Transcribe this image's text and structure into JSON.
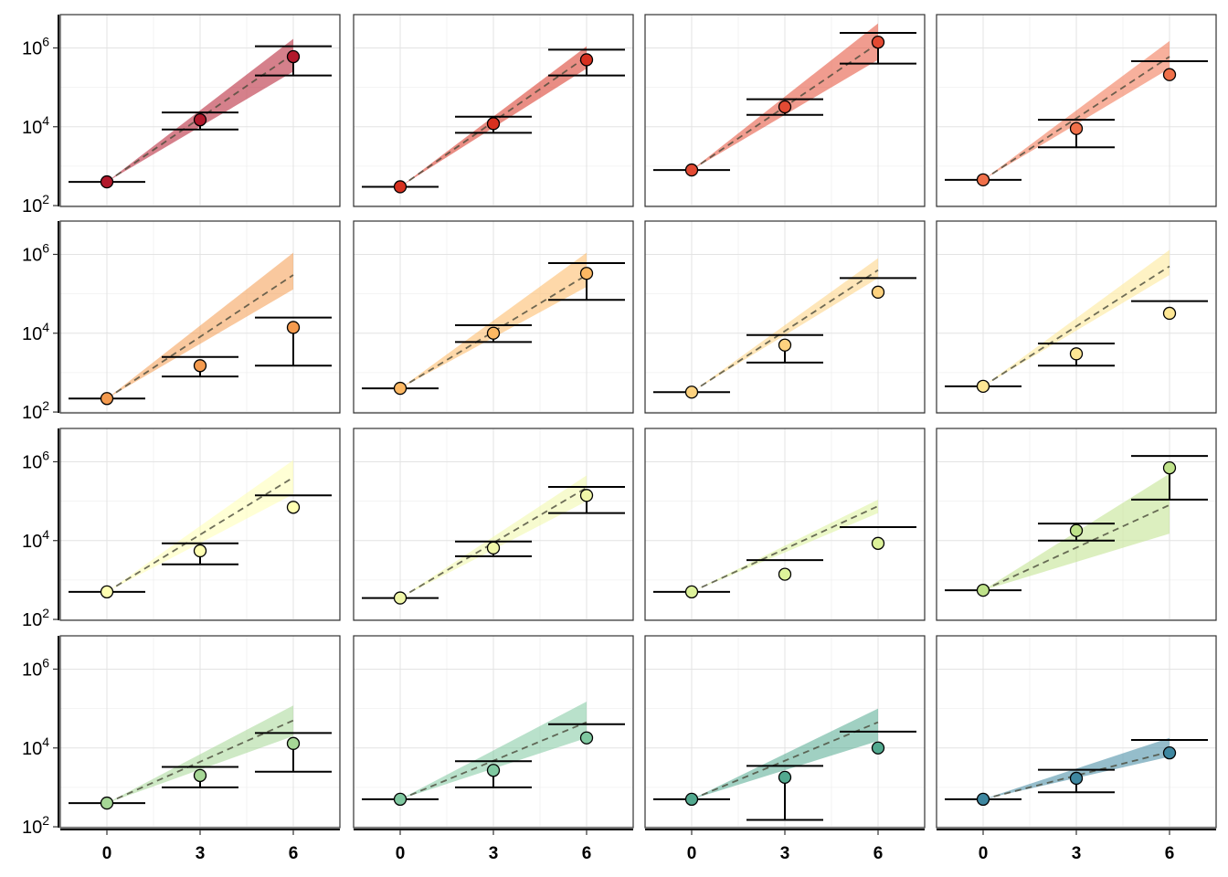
{
  "chart_data": {
    "type": "scatter",
    "layout": {
      "rows": 4,
      "cols": 4
    },
    "x_ticks": [
      "0",
      "3",
      "6"
    ],
    "y_ticks": [
      {
        "value": 100,
        "base": "10",
        "exp": "2"
      },
      {
        "value": 10000,
        "base": "10",
        "exp": "4"
      },
      {
        "value": 1000000,
        "base": "10",
        "exp": "6"
      }
    ],
    "x_range": [
      -1.5,
      7.5
    ],
    "y_range": [
      95,
      7000000
    ],
    "y_scale": "log",
    "grid": true,
    "colors": [
      "#B2182B",
      "#D7301F",
      "#E34A33",
      "#F0704A",
      "#F49A4E",
      "#FDB863",
      "#FDD27F",
      "#FEE794",
      "#FFFFB2",
      "#F0F7A8",
      "#DDF29A",
      "#BFE28A",
      "#A6D796",
      "#7FC8A0",
      "#52A98F",
      "#3E87A0"
    ],
    "panels": [
      {
        "points": [
          [
            0,
            400
          ],
          [
            3,
            15000
          ],
          [
            6,
            600000
          ]
        ],
        "intervals": [
          [
            0,
            400,
            400
          ],
          [
            3,
            8500,
            23000
          ],
          [
            6,
            200000,
            1100000
          ]
        ],
        "trend_end": 700000,
        "band_end": [
          250000,
          1700000
        ]
      },
      {
        "points": [
          [
            0,
            300
          ],
          [
            3,
            12000
          ],
          [
            6,
            500000
          ]
        ],
        "intervals": [
          [
            0,
            300,
            300
          ],
          [
            3,
            7000,
            18000
          ],
          [
            6,
            200000,
            900000
          ]
        ],
        "trend_end": 600000,
        "band_end": [
          300000,
          1100000
        ]
      },
      {
        "points": [
          [
            0,
            800
          ],
          [
            3,
            32000
          ],
          [
            6,
            1400000
          ]
        ],
        "intervals": [
          [
            0,
            800,
            800
          ],
          [
            3,
            20000,
            50000
          ],
          [
            6,
            400000,
            2400000
          ]
        ],
        "trend_end": 1300000,
        "band_end": [
          500000,
          4200000
        ]
      },
      {
        "points": [
          [
            0,
            450
          ],
          [
            3,
            9000
          ],
          [
            6,
            210000
          ]
        ],
        "intervals": [
          [
            0,
            450,
            450
          ],
          [
            3,
            3000,
            15000
          ],
          [
            6,
            460000,
            460000
          ]
        ],
        "trend_end": 600000,
        "band_end": [
          300000,
          1500000
        ]
      },
      {
        "points": [
          [
            0,
            220
          ],
          [
            3,
            1500
          ],
          [
            6,
            14000
          ]
        ],
        "intervals": [
          [
            0,
            220,
            220
          ],
          [
            3,
            800,
            2500
          ],
          [
            6,
            1500,
            25000
          ]
        ],
        "trend_end": 300000,
        "band_end": [
          130000,
          1100000
        ]
      },
      {
        "points": [
          [
            0,
            400
          ],
          [
            3,
            10000
          ],
          [
            6,
            330000
          ]
        ],
        "intervals": [
          [
            0,
            400,
            400
          ],
          [
            3,
            6000,
            16000
          ],
          [
            6,
            70000,
            600000
          ]
        ],
        "trend_end": 300000,
        "band_end": [
          150000,
          1100000
        ]
      },
      {
        "points": [
          [
            0,
            320
          ],
          [
            3,
            5000
          ],
          [
            6,
            110000
          ]
        ],
        "intervals": [
          [
            0,
            320,
            320
          ],
          [
            3,
            1800,
            9000
          ],
          [
            6,
            250000,
            250000
          ]
        ],
        "trend_end": 400000,
        "band_end": [
          250000,
          800000
        ]
      },
      {
        "points": [
          [
            0,
            450
          ],
          [
            3,
            3000
          ],
          [
            6,
            32000
          ]
        ],
        "intervals": [
          [
            0,
            450,
            450
          ],
          [
            3,
            1500,
            5500
          ],
          [
            6,
            65000,
            65000
          ]
        ],
        "trend_end": 500000,
        "band_end": [
          300000,
          1300000
        ]
      },
      {
        "points": [
          [
            0,
            500
          ],
          [
            3,
            5500
          ],
          [
            6,
            70000
          ]
        ],
        "intervals": [
          [
            0,
            500,
            500
          ],
          [
            3,
            2500,
            8500
          ],
          [
            6,
            140000,
            140000
          ]
        ],
        "trend_end": 400000,
        "band_end": [
          150000,
          1100000
        ]
      },
      {
        "points": [
          [
            0,
            350
          ],
          [
            3,
            6500
          ],
          [
            6,
            140000
          ]
        ],
        "intervals": [
          [
            0,
            350,
            350
          ],
          [
            3,
            4000,
            9500
          ],
          [
            6,
            50000,
            230000
          ]
        ],
        "trend_end": 220000,
        "band_end": [
          100000,
          450000
        ]
      },
      {
        "points": [
          [
            0,
            500
          ],
          [
            3,
            1400
          ],
          [
            6,
            8500
          ]
        ],
        "intervals": [
          [
            0,
            500,
            500
          ],
          [
            3,
            3200,
            3200
          ],
          [
            6,
            22000,
            22000
          ]
        ],
        "trend_end": 75000,
        "band_end": [
          50000,
          110000
        ]
      },
      {
        "points": [
          [
            0,
            550
          ],
          [
            3,
            18000
          ],
          [
            6,
            700000
          ]
        ],
        "intervals": [
          [
            0,
            550,
            550
          ],
          [
            3,
            10000,
            27000
          ],
          [
            6,
            110000,
            1400000
          ]
        ],
        "trend_end": 80000,
        "band_end": [
          15000,
          500000
        ]
      },
      {
        "points": [
          [
            0,
            400
          ],
          [
            3,
            2000
          ],
          [
            6,
            13000
          ]
        ],
        "intervals": [
          [
            0,
            400,
            400
          ],
          [
            3,
            1000,
            3300
          ],
          [
            6,
            2500,
            24000
          ]
        ],
        "trend_end": 50000,
        "band_end": [
          20000,
          120000
        ]
      },
      {
        "points": [
          [
            0,
            500
          ],
          [
            3,
            2700
          ],
          [
            6,
            18000
          ]
        ],
        "intervals": [
          [
            0,
            500,
            500
          ],
          [
            3,
            1000,
            4600
          ],
          [
            6,
            40000,
            40000
          ]
        ],
        "trend_end": 45000,
        "band_end": [
          18000,
          150000
        ]
      },
      {
        "points": [
          [
            0,
            500
          ],
          [
            3,
            1800
          ],
          [
            6,
            10000
          ]
        ],
        "intervals": [
          [
            0,
            500,
            500
          ],
          [
            3,
            150,
            3500
          ],
          [
            6,
            26000,
            26000
          ]
        ],
        "trend_end": 45000,
        "band_end": [
          15000,
          100000
        ]
      },
      {
        "points": [
          [
            0,
            500
          ],
          [
            3,
            1700
          ],
          [
            6,
            7500
          ]
        ],
        "intervals": [
          [
            0,
            500,
            500
          ],
          [
            3,
            750,
            2800
          ],
          [
            6,
            16000,
            16000
          ]
        ],
        "trend_end": 8000,
        "band_end": [
          6000,
          18000
        ]
      }
    ]
  }
}
